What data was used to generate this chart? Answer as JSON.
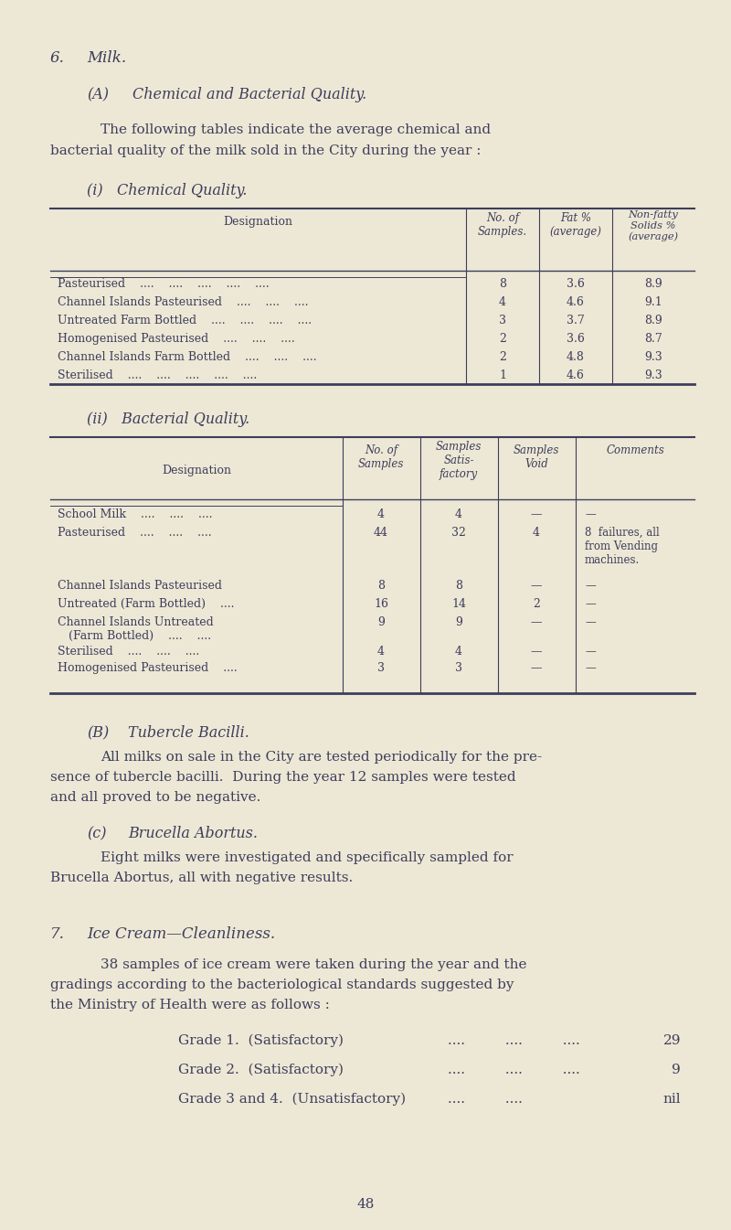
{
  "bg_color": "#ede8d5",
  "text_color": "#3d3d5c",
  "page_width": 8.0,
  "page_height": 13.45,
  "section6_heading": "6.",
  "section6_title": "Milk.",
  "sectionA_label": "(A)",
  "sectionA_title": "Chemical and Bacterial Quality.",
  "intro_line1": "The following tables indicate the average chemical and",
  "intro_line2": "bacterial quality of the milk sold in the City during the year :",
  "chem_subtitle": "(i)   Chemical Quality.",
  "chem_col0": "Designation",
  "chem_col1": "No. of\nSamples.",
  "chem_col2": "Fat %\n(average)",
  "chem_col3": "Non-fatty\nSolids %\n(average)",
  "chem_rows": [
    [
      "Pasteurised    ....    ....    ....    ....    ....",
      "8",
      "3.6",
      "8.9"
    ],
    [
      "Channel Islands Pasteurised    ....    ....    ....",
      "4",
      "4.6",
      "9.1"
    ],
    [
      "Untreated Farm Bottled    ....    ....    ....    ....",
      "3",
      "3.7",
      "8.9"
    ],
    [
      "Homogenised Pasteurised    ....    ....    ....",
      "2",
      "3.6",
      "8.7"
    ],
    [
      "Channel Islands Farm Bottled    ....    ....    ....",
      "2",
      "4.8",
      "9.3"
    ],
    [
      "Sterilised    ....    ....    ....    ....    ....",
      "1",
      "4.6",
      "9.3"
    ]
  ],
  "bact_subtitle": "(ii)   Bacterial Quality.",
  "bact_col0": "Designation",
  "bact_col1": "No. of\nSamples",
  "bact_col2": "Samples\nSatis-\nfactory",
  "bact_col3": "Samples\nVoid",
  "bact_col4": "Comments",
  "bact_rows": [
    [
      "School Milk    ....    ....    ....",
      "4",
      "4",
      "—",
      "—"
    ],
    [
      "Pasteurised    ....    ....    ....",
      "44",
      "32",
      "4",
      "8  failures, all\nfrom Vending\nmachines."
    ],
    [
      "Channel Islands Pasteurised",
      "8",
      "8",
      "—",
      "—"
    ],
    [
      "Untreated (Farm Bottled)    ....",
      "16",
      "14",
      "2",
      "—"
    ],
    [
      "Channel Islands Untreated\n   (Farm Bottled)    ....    ....",
      "9",
      "9",
      "—",
      "—"
    ],
    [
      "Sterilised    ....    ....    ....",
      "4",
      "4",
      "—",
      "—"
    ],
    [
      "Homogenised Pasteurised    ....",
      "3",
      "3",
      "—",
      "—"
    ]
  ],
  "sectionB_label": "(B)",
  "sectionB_title": "Tubercle Bacilli.",
  "sectionB_line1": "All milks on sale in the City are tested periodically for the pre-",
  "sectionB_line2": "sence of tubercle bacilli.  During the year 12 samples were tested",
  "sectionB_line3": "and all proved to be negative.",
  "sectionC_label": "(c)",
  "sectionC_title": "Brucella Abortus.",
  "sectionC_line1": "Eight milks were investigated and specifically sampled for",
  "sectionC_line2": "Brucella Abortus, all with negative results.",
  "section7_heading": "7.",
  "section7_title": "Ice Cream—Cleanliness.",
  "section7_line1": "38 samples of ice cream were taken during the year and the",
  "section7_line2": "gradings according to the bacteriological standards suggested by",
  "section7_line3": "the Ministry of Health were as follows :",
  "grade1_label": "Grade 1.  (Satisfactory)",
  "grade1_dots": "....         ....         ....",
  "grade1_val": "29",
  "grade2_label": "Grade 2.  (Satisfactory)",
  "grade2_dots": "....         ....         ....",
  "grade2_val": "9",
  "grade3_label": "Grade 3 and 4.  (Unsatisfactory)",
  "grade3_dots": "....         ....",
  "grade3_val": "nil",
  "page_number": "48"
}
